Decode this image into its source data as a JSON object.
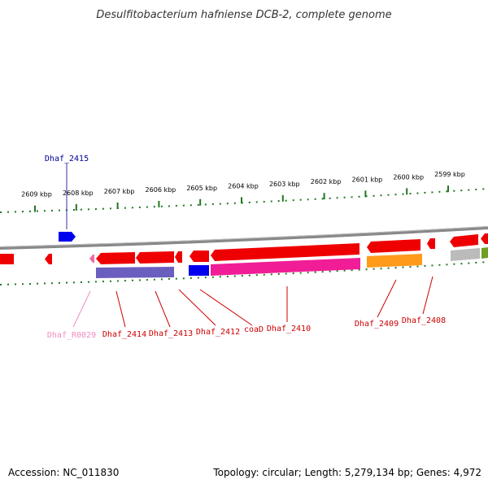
{
  "title": "Desulfitobacterium hafniense DCB-2, complete genome",
  "footer": {
    "accession": "Accession: NC_011830",
    "topology": "Topology: circular; Length: 5,279,134 bp; Genes: 4,972"
  },
  "colors": {
    "red": "#ee0000",
    "blue": "#0000ee",
    "pink": "#f06aa8",
    "slate": "#6a5fbf",
    "magenta": "#f01d96",
    "orange": "#ff9a1a",
    "gray": "#bbbbbb",
    "olive": "#6f9e22",
    "tick": "#227722",
    "backbone": "#888888"
  },
  "scale_ticks": [
    {
      "kbp": 2609,
      "label": "2609 kbp"
    },
    {
      "kbp": 2608,
      "label": "2608 kbp"
    },
    {
      "kbp": 2607,
      "label": "2607 kbp"
    },
    {
      "kbp": 2606,
      "label": "2606 kbp"
    },
    {
      "kbp": 2605,
      "label": "2605 kbp"
    },
    {
      "kbp": 2604,
      "label": "2604 kbp"
    },
    {
      "kbp": 2603,
      "label": "2603 kbp"
    },
    {
      "kbp": 2602,
      "label": "2602 kbp"
    },
    {
      "kbp": 2601,
      "label": "2601 kbp"
    },
    {
      "kbp": 2600,
      "label": "2600 kbp"
    },
    {
      "kbp": 2599,
      "label": "2599 kbp"
    }
  ],
  "gene_labels": [
    {
      "name": "Dhaf_2415",
      "color": "#000099"
    },
    {
      "name": "Dhaf_R0029",
      "color": "#f08ac0"
    },
    {
      "name": "Dhaf_2414",
      "color": "#cc0000"
    },
    {
      "name": "Dhaf_2413",
      "color": "#cc0000"
    },
    {
      "name": "Dhaf_2412",
      "color": "#cc0000"
    },
    {
      "name": "coaD",
      "color": "#cc0000"
    },
    {
      "name": "Dhaf_2410",
      "color": "#cc0000"
    },
    {
      "name": "Dhaf_2409",
      "color": "#cc0000"
    },
    {
      "name": "Dhaf_2408",
      "color": "#cc0000"
    }
  ]
}
